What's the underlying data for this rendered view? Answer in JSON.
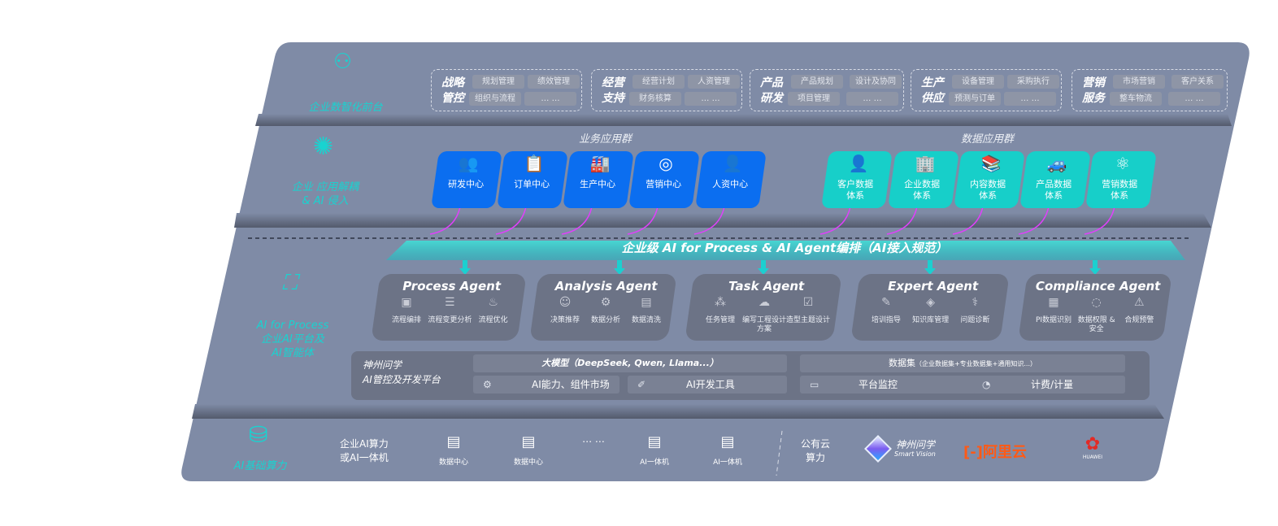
{
  "layers": {
    "front": "企业数智化前台",
    "app": [
      "企业 应用解耦",
      "& AI 侵入"
    ],
    "ai": [
      "AI for Process",
      "企业AI平台及",
      "AI智能体"
    ],
    "base": "AI基础算力"
  },
  "front_groups": [
    {
      "title": [
        "战略",
        "管控"
      ],
      "chips": [
        "规划管理",
        "绩效管理",
        "组织与流程",
        "… …"
      ]
    },
    {
      "title": [
        "经营",
        "支持"
      ],
      "chips": [
        "经营计划",
        "人资管理",
        "财务核算",
        "… …"
      ]
    },
    {
      "title": [
        "产品",
        "研发"
      ],
      "chips": [
        "产品规划",
        "设计及协同",
        "项目管理",
        "… …"
      ]
    },
    {
      "title": [
        "生产",
        "供应"
      ],
      "chips": [
        "设备管理",
        "采购执行",
        "预测与订单",
        "… …"
      ]
    },
    {
      "title": [
        "营销",
        "服务"
      ],
      "chips": [
        "市场营销",
        "客户关系",
        "整车物流",
        "… …"
      ]
    }
  ],
  "business_apps": {
    "title": "业务应用群",
    "items": [
      {
        "icon": "users-icon",
        "glyph": "👥",
        "label": "研发中心"
      },
      {
        "icon": "clipboard-icon",
        "glyph": "📋",
        "label": "订单中心"
      },
      {
        "icon": "factory-icon",
        "glyph": "🏭",
        "label": "生产中心"
      },
      {
        "icon": "target-icon",
        "glyph": "◎",
        "label": "营销中心"
      },
      {
        "icon": "person-icon",
        "glyph": "👤",
        "label": "人资中心"
      }
    ]
  },
  "data_apps": {
    "title": "数据应用群",
    "items": [
      {
        "icon": "user-icon",
        "glyph": "👤",
        "label": "客户数据\n体系"
      },
      {
        "icon": "building-icon",
        "glyph": "🏢",
        "label": "企业数据\n体系"
      },
      {
        "icon": "books-icon",
        "glyph": "📚",
        "label": "内容数据\n体系"
      },
      {
        "icon": "car-icon",
        "glyph": "🚙",
        "label": "产品数据\n体系"
      },
      {
        "icon": "atom-icon",
        "glyph": "⚛",
        "label": "营销数据\n体系"
      }
    ]
  },
  "orchestration": "企业级 AI for Process & AI Agent编排（AI接入规范）",
  "agents": [
    {
      "title": "Process Agent",
      "items": [
        {
          "icon": "chart-icon",
          "glyph": "▣",
          "label": "流程编排"
        },
        {
          "icon": "list-icon",
          "glyph": "☰",
          "label": "流程变更分析"
        },
        {
          "icon": "optimize-icon",
          "glyph": "♨",
          "label": "流程优化"
        }
      ]
    },
    {
      "title": "Analysis Agent",
      "items": [
        {
          "icon": "head-icon",
          "glyph": "☺",
          "label": "决策推荐"
        },
        {
          "icon": "gear-icon",
          "glyph": "⚙",
          "label": "数据分析"
        },
        {
          "icon": "clean-icon",
          "glyph": "▤",
          "label": "数据清洗"
        }
      ]
    },
    {
      "title": "Task Agent",
      "items": [
        {
          "icon": "network-icon",
          "glyph": "⁂",
          "label": "任务管理"
        },
        {
          "icon": "cloud-icon",
          "glyph": "☁",
          "label": "编写工程设计方案"
        },
        {
          "icon": "checklist-icon",
          "glyph": "☑",
          "label": "造型主题设计"
        }
      ]
    },
    {
      "title": "Expert Agent",
      "items": [
        {
          "icon": "training-icon",
          "glyph": "✎",
          "label": "培训指导"
        },
        {
          "icon": "layers-icon",
          "glyph": "◈",
          "label": "知识库管理"
        },
        {
          "icon": "diagnose-icon",
          "glyph": "⚕",
          "label": "问题诊断"
        }
      ]
    },
    {
      "title": "Compliance Agent",
      "items": [
        {
          "icon": "id-icon",
          "glyph": "▦",
          "label": "PI数据识别"
        },
        {
          "icon": "shield-icon",
          "glyph": "◌",
          "label": "数据权限 &\n安全"
        },
        {
          "icon": "alert-icon",
          "glyph": "⚠",
          "label": "合规预警"
        }
      ]
    }
  ],
  "platform": {
    "name": [
      "神州问学",
      "AI管控及开发平台"
    ],
    "model": "大模型（DeepSeek, Qwen, Llama...）",
    "dataset": "数据集",
    "dataset_note": "（企业数据集+专业数据集+通用知识...）",
    "tools": [
      {
        "icon": "market-icon",
        "glyph": "⚙",
        "label": "AI能力、组件市场"
      },
      {
        "icon": "devtool-icon",
        "glyph": "✐",
        "label": "AI开发工具"
      },
      {
        "icon": "monitor-icon",
        "glyph": "▭",
        "label": "平台监控"
      },
      {
        "icon": "gauge-icon",
        "glyph": "◔",
        "label": "计费/计量"
      }
    ]
  },
  "base": {
    "enterprise": [
      "企业AI算力",
      "或AI一体机"
    ],
    "servers": [
      {
        "label": "数据中心"
      },
      {
        "label": "数据中心"
      },
      {
        "label": "… …",
        "ellipsis": true
      },
      {
        "label": "AI一体机"
      },
      {
        "label": "AI一体机"
      }
    ],
    "cloud": [
      "公有云",
      "算力"
    ],
    "vendors": {
      "shenzhou": {
        "name": "神州问学",
        "sub": "Smart Vision"
      },
      "aliyun": "阿里云",
      "huawei": "HUAWEI"
    }
  },
  "colors": {
    "panel": "#7f8ba6",
    "blue": "#0b6ef0",
    "teal": "#17cfc9",
    "accent": "#19d3d0",
    "arrow": "#e040fb"
  }
}
